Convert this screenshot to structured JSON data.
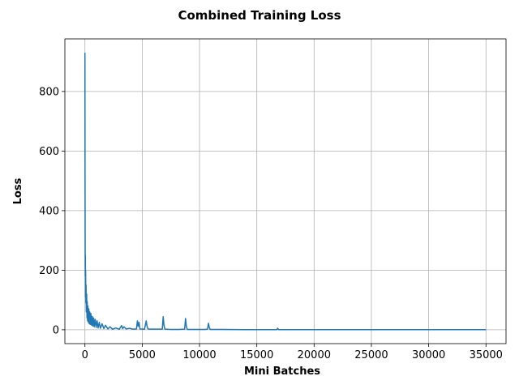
{
  "chart_data": {
    "type": "line",
    "title": "Combined Training Loss",
    "xlabel": "Mini Batches",
    "ylabel": "Loss",
    "xlim": [
      -1750,
      36750
    ],
    "ylim": [
      -46.5,
      976.5
    ],
    "xticks": [
      0,
      5000,
      10000,
      15000,
      20000,
      25000,
      30000,
      35000
    ],
    "yticks": [
      0,
      200,
      400,
      600,
      800
    ],
    "grid": true,
    "legend": "none",
    "series": [
      {
        "name": "Loss",
        "color": "#1f77b4",
        "x": [
          0,
          10,
          20,
          30,
          40,
          50,
          60,
          80,
          100,
          120,
          150,
          180,
          200,
          230,
          260,
          300,
          340,
          380,
          420,
          470,
          520,
          580,
          640,
          700,
          760,
          820,
          900,
          980,
          1060,
          1150,
          1250,
          1350,
          1500,
          1650,
          1800,
          2000,
          2200,
          2400,
          2700,
          3000,
          3200,
          3300,
          3400,
          3600,
          3900,
          4200,
          4500,
          4580,
          4650,
          4720,
          4800,
          5000,
          5200,
          5350,
          5420,
          5500,
          5700,
          6200,
          6750,
          6830,
          6900,
          6980,
          7500,
          8200,
          8700,
          8780,
          8850,
          8930,
          9500,
          10500,
          10700,
          10780,
          10850,
          10930,
          12000,
          14000,
          16000,
          16750,
          16820,
          16900,
          18000,
          22000,
          26000,
          30000,
          35000
        ],
        "y": [
          930,
          520,
          300,
          180,
          250,
          110,
          200,
          90,
          150,
          60,
          120,
          40,
          95,
          30,
          80,
          25,
          70,
          20,
          60,
          18,
          55,
          15,
          45,
          12,
          40,
          10,
          35,
          8,
          30,
          6,
          25,
          5,
          20,
          4,
          15,
          3,
          10,
          2,
          6,
          2,
          14,
          4,
          10,
          3,
          5,
          2,
          3,
          30,
          12,
          25,
          3,
          2,
          2,
          30,
          12,
          3,
          2,
          2,
          2,
          44,
          15,
          2,
          1,
          1,
          2,
          38,
          12,
          1,
          1,
          1,
          2,
          22,
          8,
          1,
          1,
          0.5,
          0.5,
          0.5,
          5,
          0.5,
          0.3,
          0.3,
          0.3,
          0.3,
          0.3
        ]
      }
    ]
  }
}
